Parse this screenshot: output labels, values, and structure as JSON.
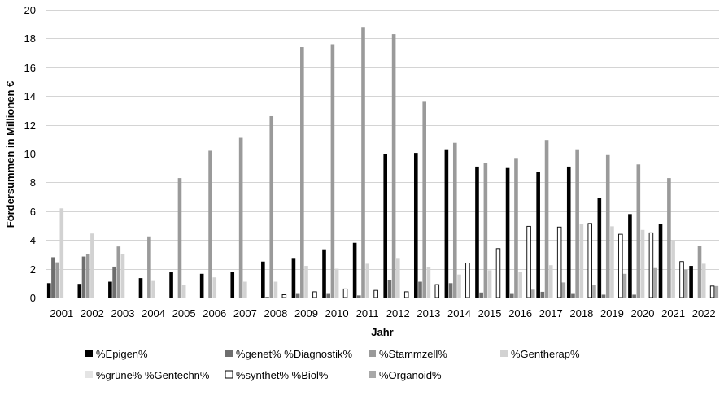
{
  "chart_data": {
    "type": "bar",
    "title": "",
    "xlabel": "Jahr",
    "ylabel": "Fördersummen in Millionen €",
    "ylim": [
      0,
      20
    ],
    "yticks": [
      0,
      2,
      4,
      6,
      8,
      10,
      12,
      14,
      16,
      18,
      20
    ],
    "grid": true,
    "legend_position": "bottom",
    "categories": [
      "2001",
      "2002",
      "2003",
      "2004",
      "2005",
      "2006",
      "2007",
      "2008",
      "2009",
      "2010",
      "2011",
      "2012",
      "2013",
      "2014",
      "2015",
      "2016",
      "2017",
      "2018",
      "2019",
      "2020",
      "2021",
      "2022"
    ],
    "series": [
      {
        "name": "%Epigen%",
        "color": "#000000",
        "values": [
          1.0,
          0.95,
          1.1,
          1.35,
          1.75,
          1.65,
          1.8,
          2.5,
          2.75,
          3.35,
          3.8,
          10.0,
          10.05,
          10.3,
          9.1,
          9.0,
          8.75,
          9.1,
          6.9,
          5.8,
          5.1,
          2.2
        ]
      },
      {
        "name": "%genet% %Diagnostik%",
        "color": "#6e6e6e",
        "values": [
          2.8,
          2.85,
          2.15,
          0.0,
          0.0,
          0.0,
          0.0,
          0.05,
          0.25,
          0.25,
          0.15,
          1.2,
          1.1,
          1.0,
          0.35,
          0.25,
          0.4,
          0.25,
          0.2,
          0.2,
          0.0,
          0.0
        ]
      },
      {
        "name": "%Stammzell%",
        "color": "#9a9a9a",
        "values": [
          2.45,
          3.05,
          3.55,
          4.25,
          8.3,
          10.2,
          11.1,
          12.6,
          17.4,
          17.6,
          18.8,
          18.3,
          13.65,
          10.75,
          9.35,
          9.7,
          10.95,
          10.3,
          9.9,
          9.25,
          8.3,
          3.6
        ]
      },
      {
        "name": "%Gentherap%",
        "color": "#d2d2d2",
        "values": [
          6.2,
          4.45,
          3.0,
          1.15,
          0.9,
          1.4,
          1.1,
          1.1,
          2.2,
          2.0,
          2.35,
          2.75,
          2.1,
          1.6,
          1.9,
          1.75,
          2.25,
          5.1,
          4.95,
          4.7,
          4.0,
          2.35
        ]
      },
      {
        "name": "%grüne% %Gentechn%",
        "color": "#e4e4e4",
        "values": [
          0.0,
          0.0,
          0.0,
          0.0,
          0.0,
          0.0,
          0.0,
          0.0,
          0.0,
          0.0,
          0.0,
          0.0,
          0.0,
          0.0,
          0.0,
          0.0,
          0.0,
          0.0,
          0.0,
          0.0,
          0.0,
          0.0
        ]
      },
      {
        "name": "%synthet% %Biol%",
        "color": "#ffffff",
        "stroke": "#000000",
        "values": [
          0.0,
          0.0,
          0.0,
          0.0,
          0.0,
          0.0,
          0.0,
          0.2,
          0.4,
          0.6,
          0.5,
          0.4,
          0.9,
          2.4,
          3.4,
          4.95,
          4.9,
          5.15,
          4.4,
          4.5,
          2.5,
          0.8
        ]
      },
      {
        "name": "%Organoid%",
        "color": "#a8a8a8",
        "values": [
          0.0,
          0.0,
          0.0,
          0.0,
          0.0,
          0.0,
          0.0,
          0.0,
          0.0,
          0.0,
          0.0,
          0.0,
          0.0,
          0.0,
          0.0,
          0.55,
          1.05,
          0.9,
          1.65,
          2.05,
          1.95,
          0.8
        ]
      }
    ]
  }
}
